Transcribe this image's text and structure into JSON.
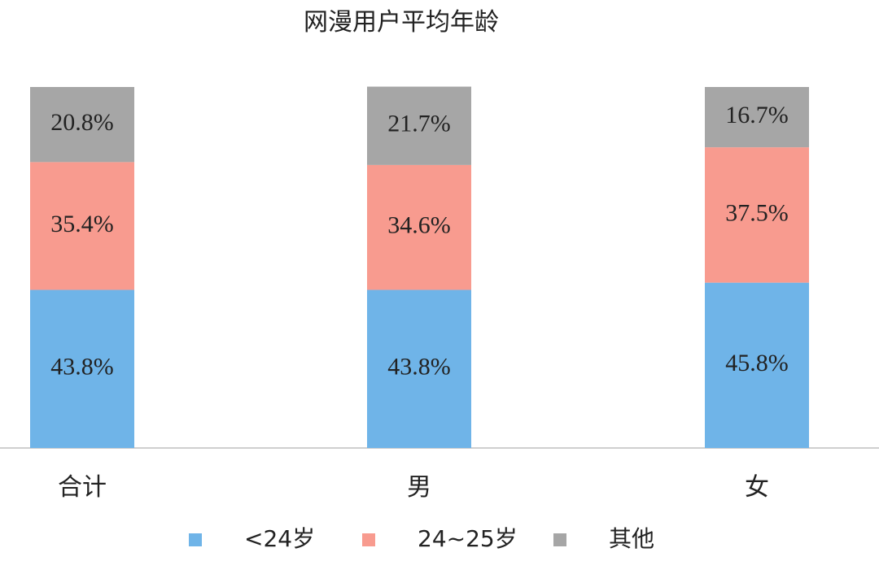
{
  "chart_data": {
    "type": "stacked_bar",
    "title": "网漫用户平均年龄",
    "categories": [
      "合计",
      "男",
      "女"
    ],
    "ylim": [
      0,
      100
    ],
    "series": [
      {
        "name": "<24岁",
        "color": "#6fb4e8",
        "values": [
          43.8,
          43.8,
          45.8
        ],
        "value_labels": [
          "43.8%",
          "43.8%",
          "45.8%"
        ]
      },
      {
        "name": "24~25岁",
        "color": "#f89b8f",
        "values": [
          35.4,
          34.6,
          37.5
        ],
        "value_labels": [
          "35.4%",
          "34.6%",
          "37.5%"
        ]
      },
      {
        "name": "其他",
        "color": "#a6a6a6",
        "values": [
          20.8,
          21.7,
          16.7
        ],
        "value_labels": [
          "20.8%",
          "21.7%",
          "16.7%"
        ]
      }
    ]
  }
}
